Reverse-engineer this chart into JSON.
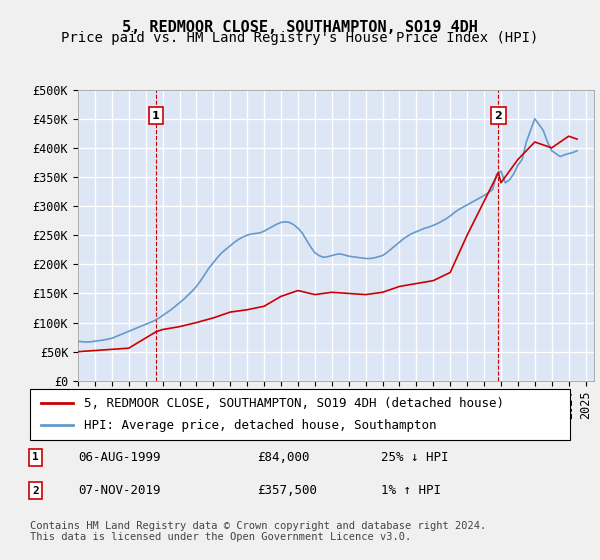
{
  "title": "5, REDMOOR CLOSE, SOUTHAMPTON, SO19 4DH",
  "subtitle": "Price paid vs. HM Land Registry's House Price Index (HPI)",
  "ylabel": "",
  "xlim_start": 1995.0,
  "xlim_end": 2025.5,
  "ylim_min": 0,
  "ylim_max": 500000,
  "yticks": [
    0,
    50000,
    100000,
    150000,
    200000,
    250000,
    300000,
    350000,
    400000,
    450000,
    500000
  ],
  "ytick_labels": [
    "£0",
    "£50K",
    "£100K",
    "£150K",
    "£200K",
    "£250K",
    "£300K",
    "£350K",
    "£400K",
    "£450K",
    "£500K"
  ],
  "xticks": [
    1995,
    1996,
    1997,
    1998,
    1999,
    2000,
    2001,
    2002,
    2003,
    2004,
    2005,
    2006,
    2007,
    2008,
    2009,
    2010,
    2011,
    2012,
    2013,
    2014,
    2015,
    2016,
    2017,
    2018,
    2019,
    2020,
    2021,
    2022,
    2023,
    2024,
    2025
  ],
  "hpi_color": "#6699cc",
  "sale_color": "#cc0000",
  "marker_color": "#cc0000",
  "dashed_line_color": "#cc0000",
  "bg_color": "#e8eef8",
  "plot_bg": "#dde6f4",
  "grid_color": "#ffffff",
  "sale1_x": 1999.6,
  "sale1_y": 84000,
  "sale2_x": 2019.85,
  "sale2_y": 357500,
  "legend_line1": "5, REDMOOR CLOSE, SOUTHAMPTON, SO19 4DH (detached house)",
  "legend_line2": "HPI: Average price, detached house, Southampton",
  "table_row1_num": "1",
  "table_row1_date": "06-AUG-1999",
  "table_row1_price": "£84,000",
  "table_row1_hpi": "25% ↓ HPI",
  "table_row2_num": "2",
  "table_row2_date": "07-NOV-2019",
  "table_row2_price": "£357,500",
  "table_row2_hpi": "1% ↑ HPI",
  "footer": "Contains HM Land Registry data © Crown copyright and database right 2024.\nThis data is licensed under the Open Government Licence v3.0.",
  "title_fontsize": 11,
  "subtitle_fontsize": 10,
  "tick_fontsize": 8.5,
  "legend_fontsize": 9,
  "footer_fontsize": 7.5,
  "hpi_data_x": [
    1995.0,
    1995.25,
    1995.5,
    1995.75,
    1996.0,
    1996.25,
    1996.5,
    1996.75,
    1997.0,
    1997.25,
    1997.5,
    1997.75,
    1998.0,
    1998.25,
    1998.5,
    1998.75,
    1999.0,
    1999.25,
    1999.5,
    1999.75,
    2000.0,
    2000.25,
    2000.5,
    2000.75,
    2001.0,
    2001.25,
    2001.5,
    2001.75,
    2002.0,
    2002.25,
    2002.5,
    2002.75,
    2003.0,
    2003.25,
    2003.5,
    2003.75,
    2004.0,
    2004.25,
    2004.5,
    2004.75,
    2005.0,
    2005.25,
    2005.5,
    2005.75,
    2006.0,
    2006.25,
    2006.5,
    2006.75,
    2007.0,
    2007.25,
    2007.5,
    2007.75,
    2008.0,
    2008.25,
    2008.5,
    2008.75,
    2009.0,
    2009.25,
    2009.5,
    2009.75,
    2010.0,
    2010.25,
    2010.5,
    2010.75,
    2011.0,
    2011.25,
    2011.5,
    2011.75,
    2012.0,
    2012.25,
    2012.5,
    2012.75,
    2013.0,
    2013.25,
    2013.5,
    2013.75,
    2014.0,
    2014.25,
    2014.5,
    2014.75,
    2015.0,
    2015.25,
    2015.5,
    2015.75,
    2016.0,
    2016.25,
    2016.5,
    2016.75,
    2017.0,
    2017.25,
    2017.5,
    2017.75,
    2018.0,
    2018.25,
    2018.5,
    2018.75,
    2019.0,
    2019.25,
    2019.5,
    2019.75,
    2020.0,
    2020.25,
    2020.5,
    2020.75,
    2021.0,
    2021.25,
    2021.5,
    2021.75,
    2022.0,
    2022.25,
    2022.5,
    2022.75,
    2023.0,
    2023.25,
    2023.5,
    2023.75,
    2024.0,
    2024.25,
    2024.5
  ],
  "hpi_data_y": [
    68000,
    67000,
    66500,
    67000,
    68000,
    69000,
    70000,
    71500,
    73000,
    76000,
    79000,
    82000,
    85000,
    88000,
    91000,
    94000,
    97000,
    100000,
    103000,
    107000,
    112000,
    117000,
    122000,
    128000,
    134000,
    140000,
    147000,
    154000,
    162000,
    172000,
    183000,
    194000,
    203000,
    212000,
    220000,
    226000,
    232000,
    238000,
    243000,
    247000,
    250000,
    252000,
    253000,
    254000,
    257000,
    261000,
    265000,
    269000,
    272000,
    273000,
    272000,
    268000,
    262000,
    254000,
    242000,
    230000,
    220000,
    215000,
    212000,
    213000,
    215000,
    217000,
    218000,
    216000,
    214000,
    213000,
    212000,
    211000,
    210000,
    210000,
    211000,
    213000,
    215000,
    220000,
    226000,
    232000,
    238000,
    244000,
    249000,
    253000,
    256000,
    259000,
    262000,
    264000,
    267000,
    270000,
    274000,
    278000,
    283000,
    289000,
    294000,
    298000,
    302000,
    306000,
    310000,
    314000,
    318000,
    323000,
    328000,
    355000,
    360000,
    340000,
    345000,
    355000,
    370000,
    380000,
    410000,
    430000,
    450000,
    440000,
    430000,
    410000,
    395000,
    390000,
    385000,
    388000,
    390000,
    392000,
    395000
  ],
  "sale_data_x": [
    1995.0,
    1996.0,
    1997.0,
    1998.0,
    1999.6,
    2000.0,
    2001.0,
    2002.0,
    2003.0,
    2004.0,
    2005.0,
    2006.0,
    2007.0,
    2008.0,
    2009.0,
    2010.0,
    2011.0,
    2012.0,
    2013.0,
    2014.0,
    2015.0,
    2016.0,
    2017.0,
    2018.0,
    2019.85,
    2020.0,
    2021.0,
    2022.0,
    2023.0,
    2024.0,
    2024.5
  ],
  "sale_data_y": [
    50000,
    52000,
    54000,
    56000,
    84000,
    88000,
    93000,
    100000,
    108000,
    118000,
    122000,
    128000,
    145000,
    155000,
    148000,
    152000,
    150000,
    148000,
    152000,
    162000,
    167000,
    172000,
    186000,
    250000,
    357500,
    340000,
    380000,
    410000,
    400000,
    420000,
    415000
  ]
}
